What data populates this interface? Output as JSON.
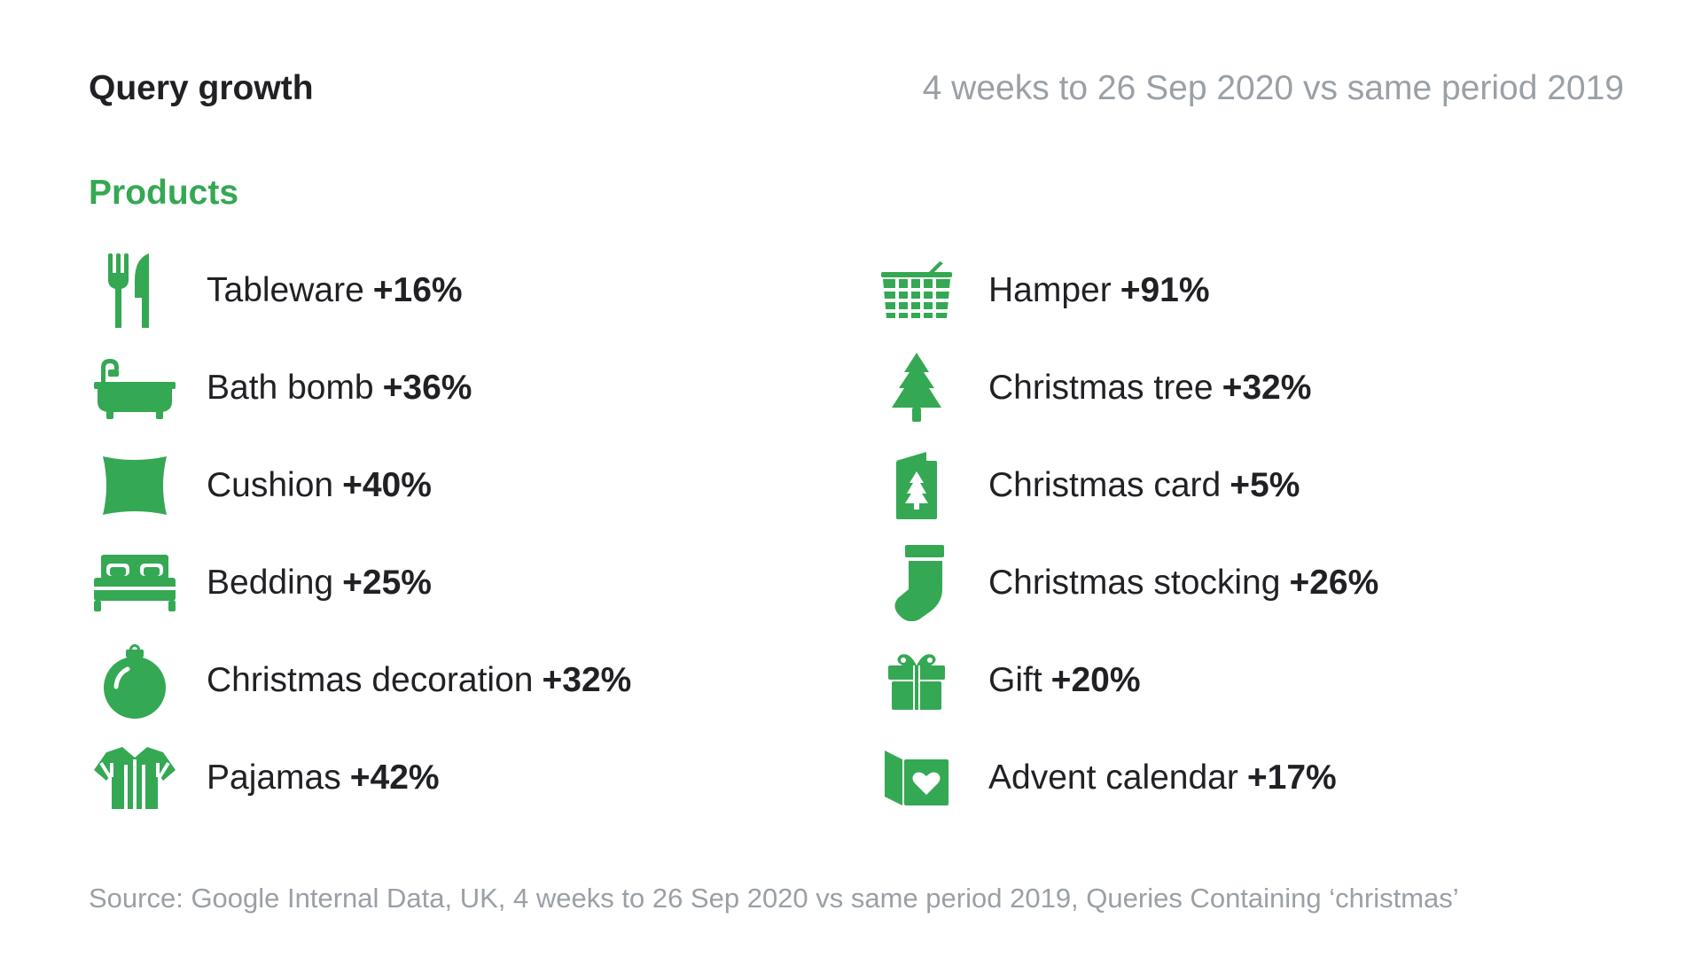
{
  "header": {
    "title": "Query growth",
    "period": "4 weeks to 26 Sep 2020 vs same period 2019"
  },
  "section": {
    "label": "Products"
  },
  "colors": {
    "accent": "#34a853",
    "text": "#202124",
    "muted": "#9aa0a6"
  },
  "items_left": [
    {
      "name": "Tableware",
      "growth": "+16%",
      "icon": "cutlery-icon"
    },
    {
      "name": "Bath bomb",
      "growth": "+36%",
      "icon": "bathtub-icon"
    },
    {
      "name": "Cushion",
      "growth": "+40%",
      "icon": "cushion-icon"
    },
    {
      "name": "Bedding",
      "growth": "+25%",
      "icon": "bed-icon"
    },
    {
      "name": "Christmas decoration",
      "growth": "+32%",
      "icon": "bauble-icon"
    },
    {
      "name": "Pajamas",
      "growth": "+42%",
      "icon": "pajamas-icon"
    }
  ],
  "items_right": [
    {
      "name": "Hamper",
      "growth": "+91%",
      "icon": "basket-icon"
    },
    {
      "name": "Christmas tree",
      "growth": "+32%",
      "icon": "christmas-tree-icon"
    },
    {
      "name": "Christmas card",
      "growth": "+5%",
      "icon": "christmas-card-icon"
    },
    {
      "name": "Christmas stocking",
      "growth": "+26%",
      "icon": "stocking-icon"
    },
    {
      "name": "Gift",
      "growth": "+20%",
      "icon": "gift-icon"
    },
    {
      "name": "Advent calendar",
      "growth": "+17%",
      "icon": "advent-calendar-icon"
    }
  ],
  "footer": {
    "source": "Source: Google Internal Data, UK, 4 weeks to 26 Sep 2020 vs same period 2019, Queries Containing ‘christmas’"
  }
}
